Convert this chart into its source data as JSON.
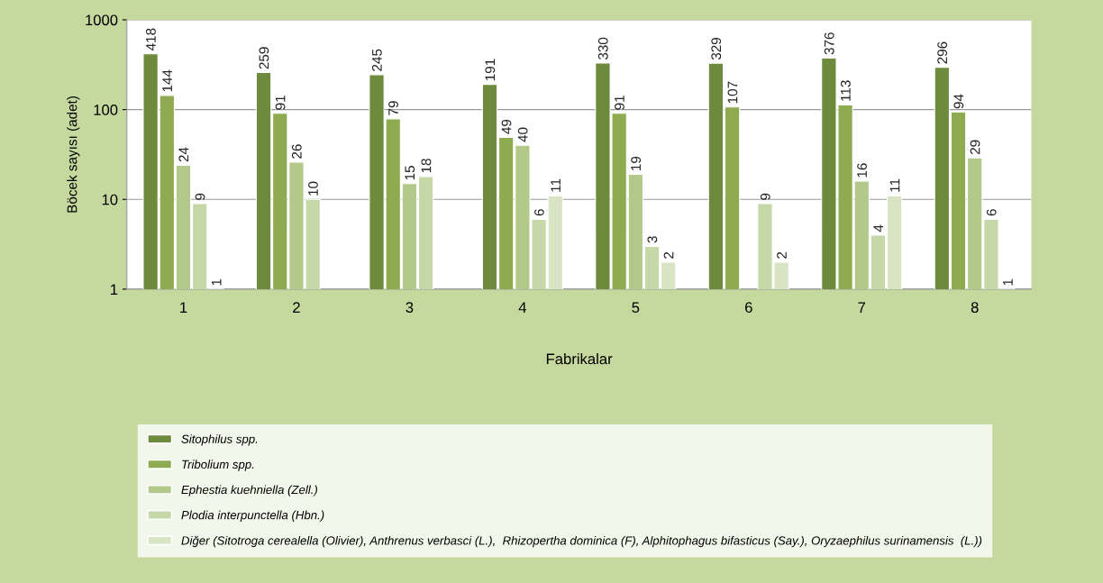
{
  "chart_data": {
    "type": "bar",
    "xlabel": "Fabrikalar",
    "ylabel": "Böcek sayısı (adet)",
    "categories": [
      "1",
      "2",
      "3",
      "4",
      "5",
      "6",
      "7",
      "8"
    ],
    "series": [
      {
        "name": "Sitophilus spp.",
        "color": "#6e8b3d",
        "values": [
          418,
          259,
          245,
          191,
          330,
          329,
          376,
          296
        ]
      },
      {
        "name": "Tribolium spp.",
        "color": "#8fab52",
        "values": [
          144,
          91,
          79,
          49,
          91,
          107,
          113,
          94
        ]
      },
      {
        "name": "Ephestia kuehniella (Zell.)",
        "color": "#b2c98b",
        "values": [
          24,
          26,
          15,
          40,
          19,
          null,
          16,
          29
        ]
      },
      {
        "name": "Plodia interpunctella (Hbn.)",
        "color": "#c6d7a8",
        "values": [
          9,
          10,
          18,
          6,
          3,
          9,
          4,
          6
        ]
      },
      {
        "name": "Diğer (Sitotroga cerealella (Olivier), Anthrenus verbasci (L.),  Rhizopertha dominica (F), Alphitophagus bifasticus (Say.), Oryzaephilus surinamensis  (L.))",
        "color": "#d8e4c4",
        "values": [
          1,
          null,
          null,
          11,
          2,
          2,
          11,
          1
        ]
      }
    ],
    "log": "y",
    "ylim": [
      1,
      1000
    ],
    "yticks": [
      1,
      10,
      100,
      1000
    ],
    "grid": "y",
    "legend": "bottom",
    "data_labels": true
  }
}
